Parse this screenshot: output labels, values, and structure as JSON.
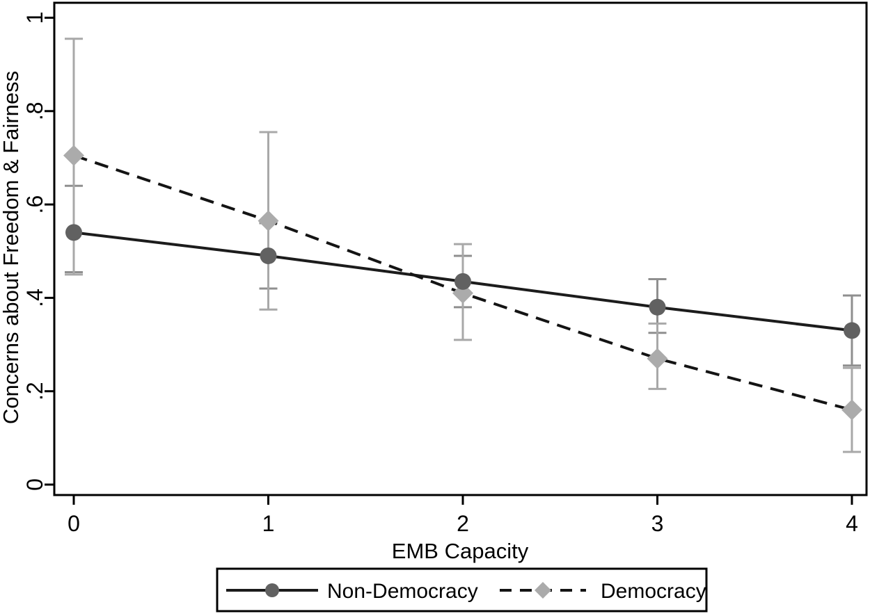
{
  "chart_data": {
    "type": "line",
    "title": "",
    "xlabel": "EMB Capacity",
    "ylabel": "Concerns about Freedom & Fairness",
    "x": [
      0,
      1,
      2,
      3,
      4
    ],
    "x_tick_labels": [
      "0",
      "1",
      "2",
      "3",
      "4"
    ],
    "y_tick_values": [
      0,
      0.2,
      0.4,
      0.6,
      0.8,
      1
    ],
    "y_tick_labels": [
      "0",
      ".2",
      ".4",
      ".6",
      ".8",
      "1"
    ],
    "xlim": [
      0,
      4
    ],
    "ylim": [
      0,
      1
    ],
    "grid": false,
    "legend_position": "bottom",
    "background_color": "#ffffff",
    "frame_color": "#000000",
    "series": [
      {
        "name": "Non-Democracy",
        "marker": "circle",
        "line_style": "solid",
        "line_color": "#1c1c1c",
        "marker_color": "#616161",
        "error_bar_color": "#8f8f8f",
        "values": [
          0.54,
          0.49,
          0.435,
          0.38,
          0.33
        ],
        "ci_lower": [
          0.455,
          0.42,
          0.38,
          0.325,
          0.255
        ],
        "ci_upper": [
          0.64,
          0.56,
          0.49,
          0.44,
          0.405
        ]
      },
      {
        "name": "Democracy",
        "marker": "diamond",
        "line_style": "dashed",
        "line_color": "#141414",
        "marker_color": "#ababab",
        "error_bar_color": "#a8a8a8",
        "values": [
          0.705,
          0.565,
          0.41,
          0.27,
          0.16
        ],
        "ci_lower": [
          0.45,
          0.375,
          0.31,
          0.205,
          0.07
        ],
        "ci_upper": [
          0.955,
          0.755,
          0.515,
          0.345,
          0.25
        ]
      }
    ]
  }
}
